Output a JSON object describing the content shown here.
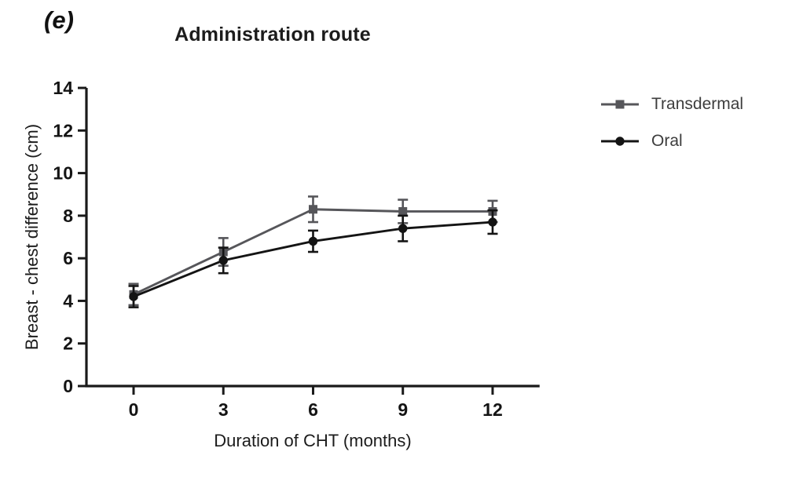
{
  "figure": {
    "panel_label": "(e)"
  },
  "chart_data": {
    "type": "line",
    "title": "Administration route",
    "xlabel": "Duration of CHT (months)",
    "ylabel": "Breast - chest difference (cm)",
    "x": [
      0,
      3,
      6,
      9,
      12
    ],
    "xticks": [
      0,
      3,
      6,
      9,
      12
    ],
    "yticks": [
      0,
      2,
      4,
      6,
      8,
      10,
      12,
      14
    ],
    "xlim": [
      -1.6,
      13.6
    ],
    "ylim": [
      0,
      14
    ],
    "grid": false,
    "legend_position": "right",
    "axis_color": "#1a1a1a",
    "series": [
      {
        "name": "Transdermal",
        "marker": "square",
        "color": "#56565a",
        "values": [
          4.3,
          6.3,
          8.3,
          8.2,
          8.2
        ],
        "errors": [
          0.5,
          0.65,
          0.6,
          0.55,
          0.5
        ]
      },
      {
        "name": "Oral",
        "marker": "circle",
        "color": "#141414",
        "values": [
          4.2,
          5.9,
          6.8,
          7.4,
          7.7
        ],
        "errors": [
          0.5,
          0.6,
          0.5,
          0.6,
          0.55
        ]
      }
    ]
  }
}
